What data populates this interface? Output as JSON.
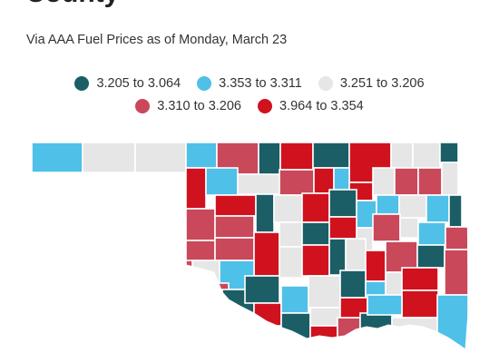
{
  "header": {
    "title_fragment": "County",
    "subtitle": "Via AAA Fuel Prices as of Monday, March 23"
  },
  "legend": {
    "rows": [
      [
        {
          "label": "3.205 to 3.064",
          "color": "#1b5e66"
        },
        {
          "label": "3.353 to 3.311",
          "color": "#4fc0e8"
        },
        {
          "label": "3.251 to 3.206",
          "color": "#e6e6e6"
        }
      ],
      [
        {
          "label": "3.310 to 3.206",
          "color": "#c9485a"
        },
        {
          "label": "3.964 to 3.354",
          "color": "#d0121f"
        }
      ]
    ]
  },
  "map": {
    "region": "Oklahoma counties",
    "colors": {
      "dark_teal": "#1b5e66",
      "light_blue": "#4fc0e8",
      "light_gray": "#e6e6e6",
      "rose": "#c9485a",
      "red": "#d0121f"
    }
  }
}
